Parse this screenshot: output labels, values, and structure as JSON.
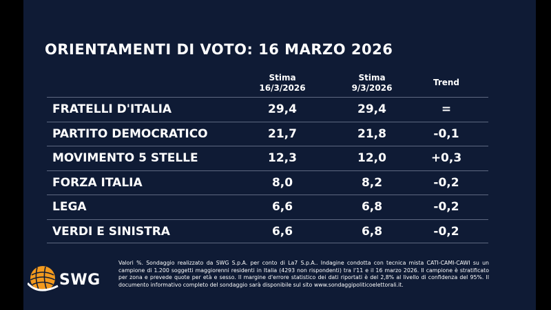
{
  "chart_data": {
    "type": "table",
    "title": "ORIENTAMENTI DI VOTO: 16 MARZO 2026",
    "columns": [
      {
        "line1": "Stima",
        "line2": "16/3/2026"
      },
      {
        "line1": "Stima",
        "line2": "9/3/2026"
      },
      {
        "line1": "Trend",
        "line2": ""
      }
    ],
    "rows": [
      {
        "party": "FRATELLI D'ITALIA",
        "stima_16_3": "29,4",
        "stima_9_3": "29,4",
        "trend": "="
      },
      {
        "party": "PARTITO DEMOCRATICO",
        "stima_16_3": "21,7",
        "stima_9_3": "21,8",
        "trend": "-0,1"
      },
      {
        "party": "MOVIMENTO 5 STELLE",
        "stima_16_3": "12,3",
        "stima_9_3": "12,0",
        "trend": "+0,3"
      },
      {
        "party": "FORZA ITALIA",
        "stima_16_3": "8,0",
        "stima_9_3": "8,2",
        "trend": "-0,2"
      },
      {
        "party": "LEGA",
        "stima_16_3": "6,6",
        "stima_9_3": "6,8",
        "trend": "-0,2"
      },
      {
        "party": "VERDI E SINISTRA",
        "stima_16_3": "6,6",
        "stima_9_3": "6,8",
        "trend": "-0,2"
      }
    ]
  },
  "logo": {
    "text": "SWG",
    "icon": "swg-globe-logo-icon"
  },
  "footnote": "Valori %. Sondaggio realizzato da SWG S.p.A. per conto di La7 S.p.A.. Indagine condotta con tecnica mista CATI-CAMI-CAWI su un campione di 1.200 soggetti maggiorenni residenti in Italia (4293 non rispondenti) tra l'11 e il 16 marzo 2026. Il campione è stratificato per zona e prevede quote per età e sesso. Il margine d'errore statistico dei dati riportati è del 2,8% al livello di confidenza del 95%. Il documento informativo completo del sondaggio sarà disponibile sul sito www.sondaggipoliticoelettorali.it.",
  "colors": {
    "background": "#0f1b35",
    "text": "#ffffff",
    "row_border": "#5f6a82",
    "logo_orange": "#f39a1e"
  }
}
